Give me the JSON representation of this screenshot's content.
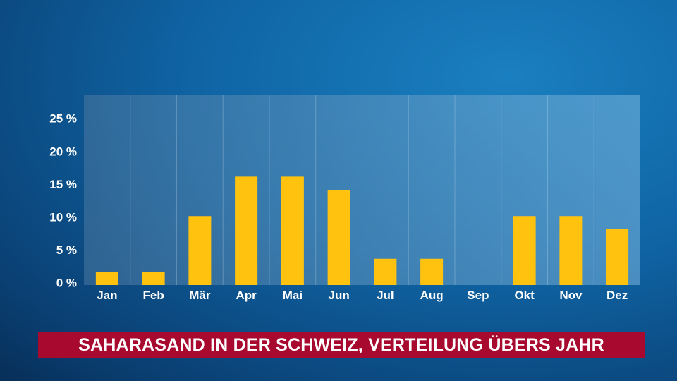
{
  "chart_data": {
    "type": "bar",
    "title": "SAHARASAND IN DER SCHWEIZ, VERTEILUNG ÜBERS JAHR",
    "categories": [
      "Jan",
      "Feb",
      "Mär",
      "Apr",
      "Mai",
      "Jun",
      "Jul",
      "Aug",
      "Sep",
      "Okt",
      "Nov",
      "Dez"
    ],
    "values": [
      2,
      2,
      10.5,
      16.5,
      16.5,
      14.5,
      4,
      4,
      0,
      10.5,
      10.5,
      8.5
    ],
    "unit": "%",
    "yticks": [
      "0 %",
      "5 %",
      "10 %",
      "15 %",
      "20 %",
      "25 %"
    ],
    "ylim": [
      0,
      29
    ],
    "grid": "vertical",
    "bar_color": "#ffc20e",
    "plot_background": "#5a9ac6"
  }
}
